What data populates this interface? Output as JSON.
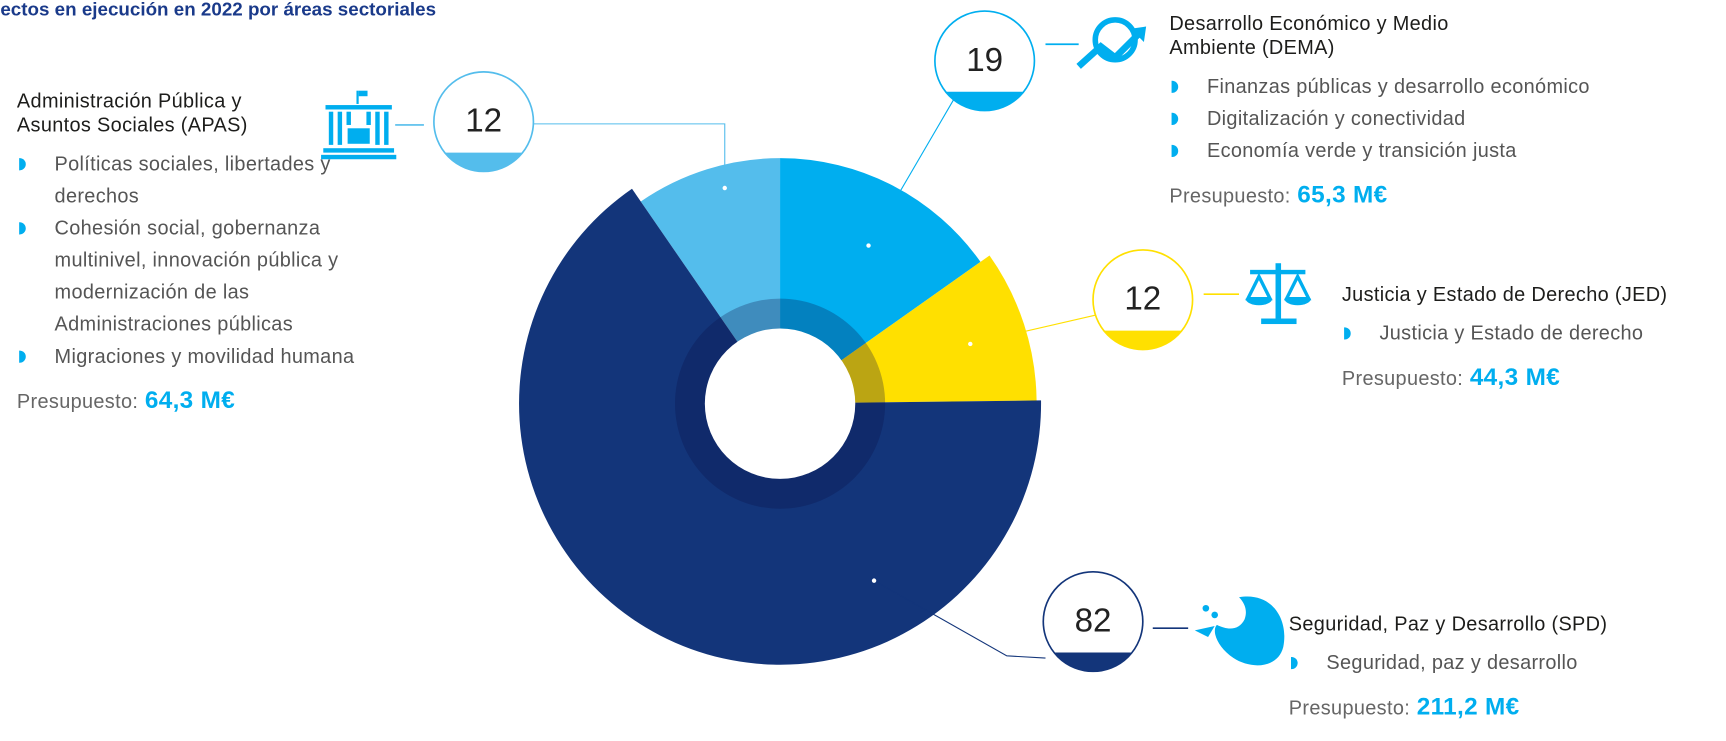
{
  "chart_data": {
    "type": "pie",
    "title": "ectos en ejecución en 2022 por áreas sectoriales",
    "categories": [
      "Administración Pública y Asuntos Sociales (APAS)",
      "Desarrollo Económico y Medio Ambiente (DEMA)",
      "Justicia y Estado de Derecho (JED)",
      "Seguridad, Paz y Desarrollo (SPD)"
    ],
    "values": [
      12,
      19,
      12,
      82
    ],
    "colors": [
      "#54bdec",
      "#00aeef",
      "#ffe000",
      "#13357a"
    ],
    "budget_label": "Presupuesto:",
    "details": [
      {
        "bullets": [
          "Políticas sociales, libertades y derechos",
          "Cohesión social, gobernanza multinivel, innovación pública y modernización de las Administraciones públicas",
          "Migraciones y movilidad humana"
        ],
        "budget": "64,3 M€"
      },
      {
        "bullets": [
          "Finanzas públicas y desarrollo económico",
          "Digitalización y conectividad",
          "Economía verde y transición justa"
        ],
        "budget": "65,3 M€"
      },
      {
        "bullets": [
          "Justicia y Estado de derecho"
        ],
        "budget": "44,3 M€"
      },
      {
        "bullets": [
          "Seguridad, paz y desarrollo"
        ],
        "budget": "211,2 M€"
      }
    ]
  }
}
